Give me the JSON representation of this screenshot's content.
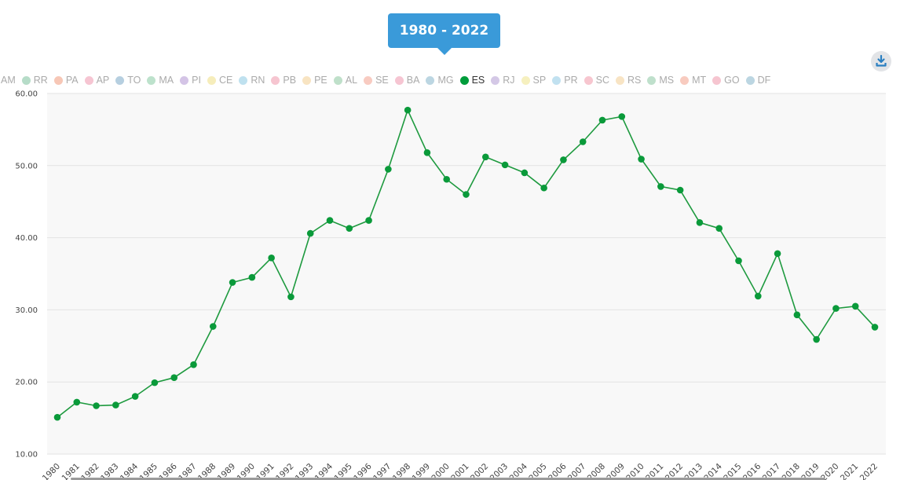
{
  "range_label": "1980 - 2022",
  "download_icon": "download-icon",
  "legend": [
    {
      "label": "AM",
      "color": "#f3b6a3",
      "active": false
    },
    {
      "label": "RR",
      "color": "#b6dcc8",
      "active": false
    },
    {
      "label": "PA",
      "color": "#f7c7b6",
      "active": false
    },
    {
      "label": "AP",
      "color": "#f6c5d2",
      "active": false
    },
    {
      "label": "TO",
      "color": "#b6cfe0",
      "active": false
    },
    {
      "label": "MA",
      "color": "#bde2cc",
      "active": false
    },
    {
      "label": "PI",
      "color": "#d4c4e6",
      "active": false
    },
    {
      "label": "CE",
      "color": "#f6edbb",
      "active": false
    },
    {
      "label": "RN",
      "color": "#bfe1ef",
      "active": false
    },
    {
      "label": "PB",
      "color": "#f6c5d0",
      "active": false
    },
    {
      "label": "PE",
      "color": "#f8e4c2",
      "active": false
    },
    {
      "label": "AL",
      "color": "#bfe0ca",
      "active": false
    },
    {
      "label": "SE",
      "color": "#f8cbc1",
      "active": false
    },
    {
      "label": "BA",
      "color": "#f6c5d2",
      "active": false
    },
    {
      "label": "MG",
      "color": "#bcd6e2",
      "active": false
    },
    {
      "label": "ES",
      "color": "#009c3b",
      "active": true
    },
    {
      "label": "RJ",
      "color": "#d4c8e6",
      "active": false
    },
    {
      "label": "SP",
      "color": "#f6f0bf",
      "active": false
    },
    {
      "label": "PR",
      "color": "#c1e1f0",
      "active": false
    },
    {
      "label": "SC",
      "color": "#f7c6cf",
      "active": false
    },
    {
      "label": "RS",
      "color": "#f8e4c4",
      "active": false
    },
    {
      "label": "MS",
      "color": "#bfe0cc",
      "active": false
    },
    {
      "label": "MT",
      "color": "#f8cbbf",
      "active": false
    },
    {
      "label": "GO",
      "color": "#f6c5d0",
      "active": false
    },
    {
      "label": "DF",
      "color": "#bcd6e2",
      "active": false
    }
  ],
  "chart_data": {
    "type": "line",
    "title": "",
    "xlabel": "",
    "ylabel": "",
    "ylim": [
      10,
      60
    ],
    "yticks": [
      10,
      20,
      30,
      40,
      50,
      60
    ],
    "ytick_labels": [
      "10.00",
      "20.00",
      "30.00",
      "40.00",
      "50.00",
      "60.00"
    ],
    "grid": true,
    "line_color": "#1e9a3f",
    "categories": [
      "1980",
      "1981",
      "1982",
      "1983",
      "1984",
      "1985",
      "1986",
      "1987",
      "1988",
      "1989",
      "1990",
      "1991",
      "1992",
      "1993",
      "1994",
      "1995",
      "1996",
      "1997",
      "1998",
      "1999",
      "2000",
      "2001",
      "2002",
      "2003",
      "2004",
      "2005",
      "2006",
      "2007",
      "2008",
      "2009",
      "2010",
      "2011",
      "2012",
      "2013",
      "2014",
      "2015",
      "2016",
      "2017",
      "2018",
      "2019",
      "2020",
      "2021",
      "2022"
    ],
    "series": [
      {
        "name": "ES",
        "values": [
          15.1,
          17.2,
          16.7,
          16.8,
          18.0,
          19.9,
          20.6,
          22.4,
          27.7,
          33.8,
          34.5,
          37.2,
          31.8,
          40.6,
          42.4,
          41.3,
          42.4,
          49.5,
          57.7,
          51.8,
          48.1,
          46.0,
          51.2,
          50.1,
          49.0,
          46.9,
          50.8,
          53.3,
          56.3,
          56.8,
          50.9,
          47.1,
          46.6,
          42.1,
          41.3,
          36.8,
          31.9,
          37.8,
          29.3,
          25.9,
          30.2,
          30.5,
          27.6
        ]
      }
    ]
  }
}
